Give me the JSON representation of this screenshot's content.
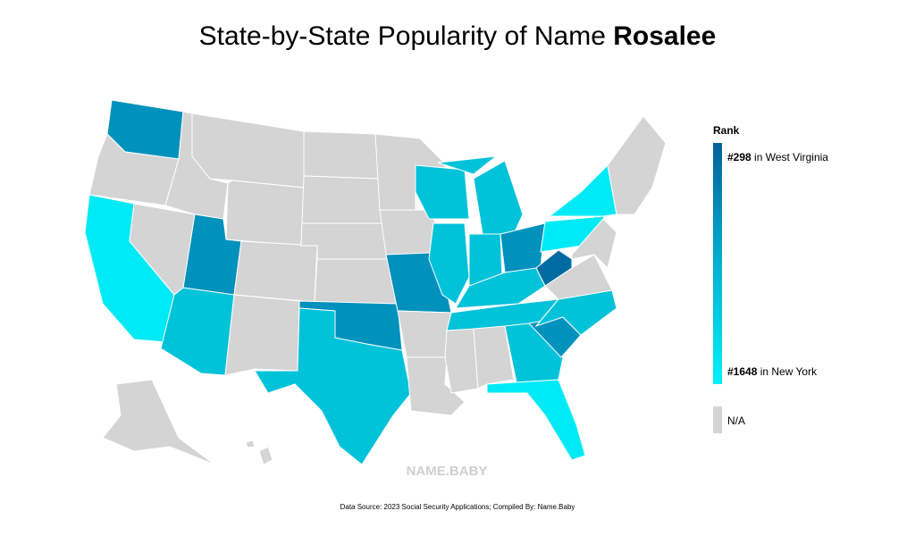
{
  "title": {
    "text": "State-by-State Popularity of Name ",
    "name": "Rosalee"
  },
  "legend": {
    "title": "Rank",
    "max": {
      "rank": "#298",
      "state": " in West Virginia"
    },
    "min": {
      "rank": "#1648",
      "state": " in New York"
    },
    "na": "N/A"
  },
  "watermark": "NAME.BABY",
  "source": "Data Source: 2023 Social Security Applications; Compiled By: Name.Baby"
}
